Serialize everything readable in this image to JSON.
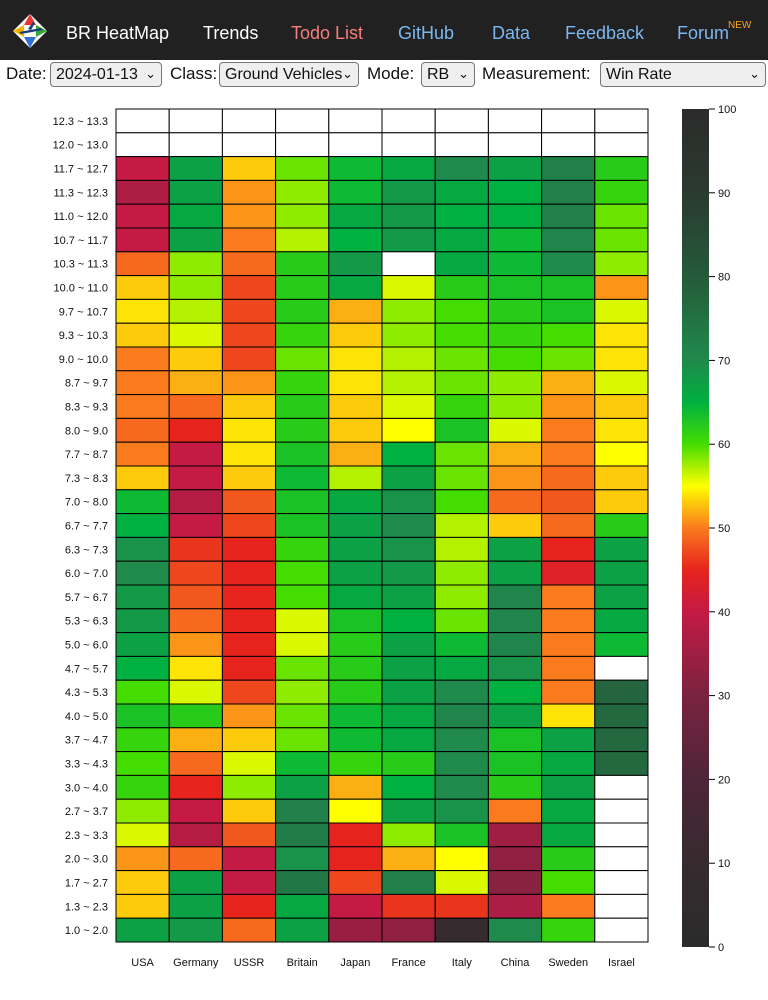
{
  "navbar": {
    "brand": "BR HeatMap",
    "items": [
      {
        "label": "Trends"
      },
      {
        "label": "Todo List"
      },
      {
        "label": "GitHub"
      },
      {
        "label": "Data"
      },
      {
        "label": "Feedback"
      },
      {
        "label": "Forum",
        "badge": "NEW"
      }
    ]
  },
  "filters": {
    "date": {
      "label": "Date:",
      "value": "2024-01-13"
    },
    "class": {
      "label": "Class:",
      "value": "Ground Vehicles"
    },
    "mode": {
      "label": "Mode:",
      "value": "RB"
    },
    "measurement": {
      "label": "Measurement:",
      "value": "Win Rate"
    }
  },
  "chart_data": {
    "type": "heatmap",
    "title": "",
    "xlabel": "",
    "ylabel": "",
    "categories": [
      "USA",
      "Germany",
      "USSR",
      "Britain",
      "Japan",
      "France",
      "Italy",
      "China",
      "Sweden",
      "Israel"
    ],
    "rows": [
      "12.3 ~ 13.3",
      "12.0 ~ 13.0",
      "11.7 ~ 12.7",
      "11.3 ~ 12.3",
      "11.0 ~ 12.0",
      "10.7 ~ 11.7",
      "10.3 ~ 11.3",
      "10.0 ~ 11.0",
      "9.7 ~ 10.7",
      "9.3 ~ 10.3",
      "9.0 ~ 10.0",
      "8.7 ~ 9.7",
      "8.3 ~ 9.3",
      "8.0 ~ 9.0",
      "7.7 ~ 8.7",
      "7.3 ~ 8.3",
      "7.0 ~ 8.0",
      "6.7 ~ 7.7",
      "6.3 ~ 7.3",
      "6.0 ~ 7.0",
      "5.7 ~ 6.7",
      "5.3 ~ 6.3",
      "5.0 ~ 6.0",
      "4.7 ~ 5.7",
      "4.3 ~ 5.3",
      "4.0 ~ 5.0",
      "3.7 ~ 4.7",
      "3.3 ~ 4.3",
      "3.0 ~ 4.0",
      "2.7 ~ 3.7",
      "2.3 ~ 3.3",
      "2.0 ~ 3.0",
      "1.7 ~ 2.7",
      "1.3 ~ 2.3",
      "1.0 ~ 2.0"
    ],
    "values": [
      [
        null,
        null,
        null,
        null,
        null,
        null,
        null,
        null,
        null,
        null
      ],
      [
        null,
        null,
        null,
        null,
        null,
        null,
        null,
        null,
        null,
        null
      ],
      [
        40,
        67,
        53,
        59,
        64,
        66,
        70,
        67,
        72,
        62
      ],
      [
        37,
        67,
        51,
        58,
        64,
        68,
        66,
        65,
        72,
        61
      ],
      [
        40,
        66,
        51,
        58,
        66,
        68,
        65,
        65,
        72,
        59
      ],
      [
        40,
        67,
        50,
        57,
        65,
        68,
        66,
        64,
        71,
        59
      ],
      [
        49,
        58,
        49,
        62,
        68,
        null,
        66,
        64,
        70,
        58
      ],
      [
        53,
        58,
        47,
        62,
        66,
        56,
        62,
        63,
        63,
        51
      ],
      [
        54,
        57,
        47,
        62,
        52,
        58,
        60,
        62,
        63,
        56
      ],
      [
        53,
        56,
        47,
        61,
        53,
        58,
        60,
        61,
        60,
        54
      ],
      [
        50,
        53,
        47,
        59,
        54,
        57,
        59,
        60,
        59,
        54
      ],
      [
        50,
        52,
        51,
        61,
        54,
        57,
        59,
        58,
        52,
        56
      ],
      [
        50,
        49,
        53,
        62,
        53,
        56,
        61,
        58,
        51,
        53
      ],
      [
        49,
        45,
        54,
        62,
        53,
        55,
        63,
        56,
        50,
        54
      ],
      [
        50,
        40,
        54,
        63,
        52,
        65,
        59,
        52,
        50,
        55
      ],
      [
        53,
        40,
        53,
        64,
        57,
        67,
        59,
        51,
        49,
        53
      ],
      [
        64,
        38,
        48,
        63,
        66,
        69,
        60,
        49,
        48,
        53
      ],
      [
        65,
        40,
        47,
        63,
        67,
        70,
        57,
        53,
        49,
        62
      ],
      [
        69,
        46,
        45,
        61,
        67,
        69,
        57,
        67,
        45,
        67
      ],
      [
        70,
        47,
        45,
        60,
        67,
        68,
        58,
        67,
        44,
        67
      ],
      [
        68,
        48,
        45,
        60,
        66,
        67,
        58,
        71,
        50,
        67
      ],
      [
        68,
        49,
        45,
        56,
        63,
        65,
        59,
        71,
        50,
        66
      ],
      [
        67,
        51,
        45,
        56,
        62,
        67,
        64,
        71,
        50,
        64
      ],
      [
        65,
        54,
        45,
        59,
        62,
        67,
        66,
        69,
        50,
        null
      ],
      [
        60,
        56,
        47,
        58,
        62,
        67,
        70,
        65,
        50,
        78
      ],
      [
        63,
        62,
        51,
        59,
        64,
        66,
        71,
        67,
        54,
        77
      ],
      [
        61,
        52,
        53,
        59,
        64,
        66,
        70,
        63,
        67,
        77
      ],
      [
        60,
        49,
        56,
        64,
        61,
        62,
        70,
        63,
        66,
        77
      ],
      [
        61,
        45,
        58,
        67,
        52,
        65,
        70,
        62,
        67,
        null
      ],
      [
        58,
        40,
        53,
        72,
        55,
        67,
        69,
        50,
        66,
        null
      ],
      [
        56,
        38,
        48,
        73,
        45,
        58,
        63,
        35,
        66,
        null
      ],
      [
        51,
        49,
        40,
        69,
        45,
        52,
        55,
        33,
        62,
        null
      ],
      [
        53,
        67,
        40,
        74,
        47,
        72,
        56,
        32,
        60,
        null
      ],
      [
        53,
        67,
        45,
        66,
        40,
        46,
        46,
        37,
        50,
        null
      ],
      [
        67,
        68,
        49,
        67,
        34,
        33,
        10,
        70,
        61,
        null
      ]
    ],
    "colorbar": {
      "min": 0,
      "max": 100,
      "ticks": [
        0,
        10,
        20,
        30,
        40,
        50,
        60,
        70,
        80,
        90,
        100
      ]
    },
    "missing_color": "#ffffff"
  }
}
